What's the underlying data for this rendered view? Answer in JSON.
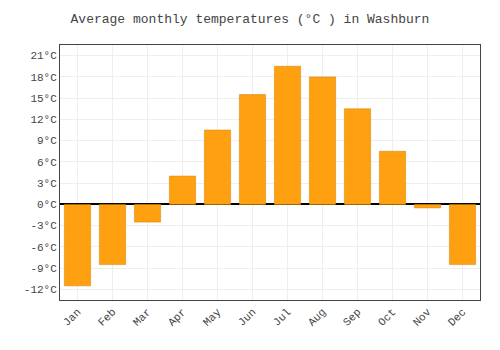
{
  "chart_data": {
    "type": "bar",
    "title": "Average monthly temperatures (°C ) in Washburn",
    "categories": [
      "Jan",
      "Feb",
      "Mar",
      "Apr",
      "May",
      "Jun",
      "Jul",
      "Aug",
      "Sep",
      "Oct",
      "Nov",
      "Dec"
    ],
    "values": [
      -11.5,
      -8.5,
      -2.5,
      4.0,
      10.5,
      15.5,
      19.5,
      18.0,
      13.5,
      7.5,
      -0.5,
      -8.5
    ],
    "color": "#FFA010",
    "ylim": [
      -13.5,
      22.5
    ],
    "yticks": [
      {
        "value": -12,
        "label": "-12°C"
      },
      {
        "value": -9,
        "label": "-9°C"
      },
      {
        "value": -6,
        "label": "-6°C"
      },
      {
        "value": -3,
        "label": "-3°C"
      },
      {
        "value": 0,
        "label": "0°C"
      },
      {
        "value": 3,
        "label": "3°C"
      },
      {
        "value": 6,
        "label": "6°C"
      },
      {
        "value": 9,
        "label": "9°C"
      },
      {
        "value": 12,
        "label": "12°C"
      },
      {
        "value": 15,
        "label": "15°C"
      },
      {
        "value": 18,
        "label": "18°C"
      },
      {
        "value": 21,
        "label": "21°C"
      }
    ],
    "grid": true
  }
}
